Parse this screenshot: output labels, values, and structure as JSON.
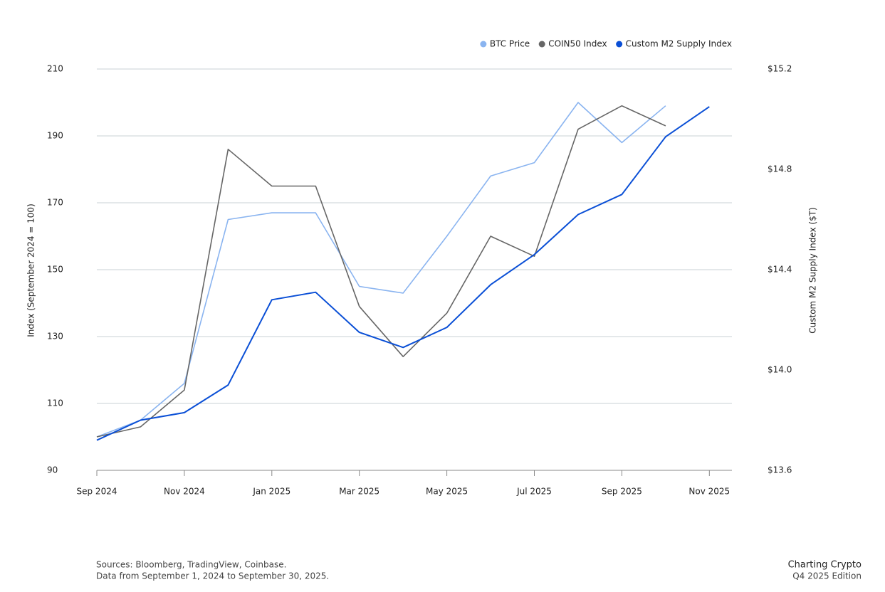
{
  "chart_data": {
    "type": "line",
    "y_label": "Index (September 2024 = 100)",
    "y2_label": "Custom M2 Supply Index ($T)",
    "x": [
      "Sep 2024",
      "Oct 2024",
      "Nov 2024",
      "Dec 2024",
      "Jan 2025",
      "Feb 2025",
      "Mar 2025",
      "Apr 2025",
      "May 2025",
      "Jun 2025",
      "Jul 2025",
      "Aug 2025",
      "Sep 2025",
      "Oct 2025",
      "Nov 2025"
    ],
    "xticks": [
      "Sep 2024",
      "Nov 2024",
      "Jan 2025",
      "Mar 2025",
      "May 2025",
      "Jul 2025",
      "Sep 2025",
      "Nov 2025"
    ],
    "ylim": [
      90,
      210
    ],
    "yticks": [
      90,
      110,
      130,
      150,
      170,
      190,
      210
    ],
    "y2lim": [
      13.6,
      15.2
    ],
    "y2ticks": [
      {
        "value": 13.6,
        "label": "$13.6"
      },
      {
        "value": 14.0,
        "label": "$14.0"
      },
      {
        "value": 14.4,
        "label": "$14.4"
      },
      {
        "value": 14.8,
        "label": "$14.8"
      },
      {
        "value": 15.2,
        "label": "$15.2"
      }
    ],
    "grid": true,
    "legend": "top-right",
    "series": [
      {
        "name": "BTC Price",
        "color": "#8ab4f0",
        "values": [
          100,
          105,
          116,
          165,
          167,
          167,
          145,
          143,
          160,
          178,
          182,
          200,
          188,
          199,
          null
        ]
      },
      {
        "name": "COIN50 Index",
        "color": "#666666",
        "values": [
          100,
          103,
          114,
          186,
          175,
          175,
          139,
          124,
          137,
          160,
          154,
          192,
          199,
          193,
          null
        ]
      },
      {
        "name": "Custom M2 Supply Index",
        "color": "#0a4fd6",
        "axis": "y2",
        "values": [
          13.72,
          13.8,
          13.83,
          13.94,
          14.28,
          14.31,
          14.15,
          14.09,
          14.17,
          14.34,
          14.46,
          14.62,
          14.7,
          14.93,
          15.05
        ]
      }
    ],
    "source": "Sources: Bloomberg, TradingView, Coinbase.",
    "note": "Data from September 1, 2024 to September 30, 2025.",
    "brand": "Charting Crypto",
    "edition": "Q4 2025 Edition"
  }
}
